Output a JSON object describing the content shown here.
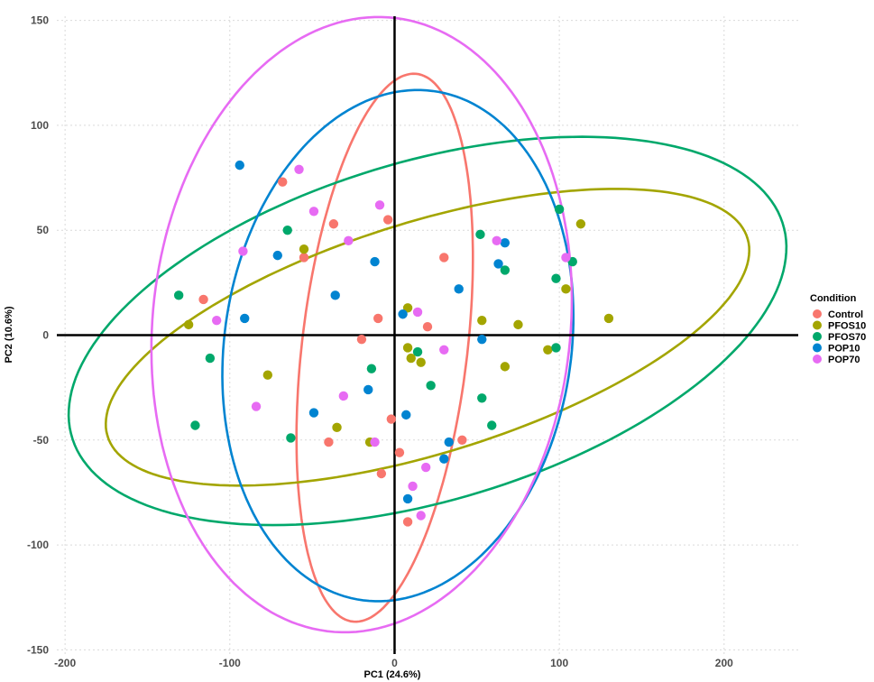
{
  "chart_data": {
    "type": "scatter",
    "xlabel": "PC1 (24.6%)",
    "ylabel": "PC2 (10.6%)",
    "xlim": [
      -205,
      245
    ],
    "ylim": [
      -152,
      152
    ],
    "x_ticks": [
      -200,
      -100,
      0,
      100,
      200
    ],
    "y_ticks": [
      -150,
      -100,
      -50,
      0,
      50,
      100,
      150
    ],
    "grid": true,
    "zero_lines": true,
    "legend_title": "Condition",
    "legend_position": "right",
    "series": [
      {
        "name": "Control",
        "color": "#F8766D",
        "points": [
          [
            -68,
            73
          ],
          [
            -37,
            53
          ],
          [
            -55,
            37
          ],
          [
            -116,
            17
          ],
          [
            -10,
            8
          ],
          [
            -20,
            -2
          ],
          [
            -4,
            55
          ],
          [
            30,
            37
          ],
          [
            20,
            4
          ],
          [
            -2,
            -40
          ],
          [
            -40,
            -51
          ],
          [
            3,
            -56
          ],
          [
            -8,
            -66
          ],
          [
            41,
            -50
          ],
          [
            8,
            -89
          ]
        ],
        "ellipse": {
          "cx": -6,
          "cy": -6,
          "rx": 132,
          "ry": 50,
          "angle_deg": 81
        }
      },
      {
        "name": "PFOS10",
        "color": "#A3A500",
        "points": [
          [
            -55,
            41
          ],
          [
            -125,
            5
          ],
          [
            8,
            13
          ],
          [
            8,
            -6
          ],
          [
            10,
            -11
          ],
          [
            -77,
            -19
          ],
          [
            -35,
            -44
          ],
          [
            -15,
            -51
          ],
          [
            16,
            -13
          ],
          [
            53,
            7
          ],
          [
            75,
            5
          ],
          [
            67,
            -15
          ],
          [
            93,
            -7
          ],
          [
            104,
            22
          ],
          [
            113,
            53
          ],
          [
            130,
            8
          ]
        ],
        "ellipse": {
          "cx": 20,
          "cy": -1,
          "rx": 200,
          "ry": 56,
          "angle_deg": 13
        }
      },
      {
        "name": "PFOS70",
        "color": "#00A86B",
        "points": [
          [
            -131,
            19
          ],
          [
            -65,
            50
          ],
          [
            -112,
            -11
          ],
          [
            -121,
            -43
          ],
          [
            -63,
            -49
          ],
          [
            -14,
            -16
          ],
          [
            14,
            -8
          ],
          [
            22,
            -24
          ],
          [
            52,
            48
          ],
          [
            67,
            31
          ],
          [
            53,
            -30
          ],
          [
            59,
            -43
          ],
          [
            98,
            27
          ],
          [
            100,
            60
          ],
          [
            98,
            -6
          ],
          [
            108,
            35
          ]
        ],
        "ellipse": {
          "cx": 20,
          "cy": 2,
          "rx": 222,
          "ry": 82,
          "angle_deg": 12
        }
      },
      {
        "name": "POP10",
        "color": "#0084D1",
        "points": [
          [
            -94,
            81
          ],
          [
            -71,
            38
          ],
          [
            -91,
            8
          ],
          [
            -36,
            19
          ],
          [
            -12,
            35
          ],
          [
            5,
            10
          ],
          [
            -16,
            -26
          ],
          [
            -49,
            -37
          ],
          [
            7,
            -38
          ],
          [
            8,
            -78
          ],
          [
            33,
            -51
          ],
          [
            30,
            -59
          ],
          [
            39,
            22
          ],
          [
            53,
            -2
          ],
          [
            63,
            34
          ],
          [
            67,
            44
          ]
        ],
        "ellipse": {
          "cx": 2,
          "cy": -5,
          "rx": 124,
          "ry": 104,
          "angle_deg": 70
        }
      },
      {
        "name": "POP70",
        "color": "#E76BF3",
        "points": [
          [
            -58,
            79
          ],
          [
            -49,
            59
          ],
          [
            -28,
            45
          ],
          [
            -9,
            62
          ],
          [
            -92,
            40
          ],
          [
            -108,
            7
          ],
          [
            -84,
            -34
          ],
          [
            -31,
            -29
          ],
          [
            -12,
            -51
          ],
          [
            14,
            11
          ],
          [
            30,
            -7
          ],
          [
            19,
            -63
          ],
          [
            11,
            -72
          ],
          [
            16,
            -86
          ],
          [
            62,
            45
          ],
          [
            104,
            37
          ]
        ],
        "ellipse": {
          "cx": -20,
          "cy": 5,
          "rx": 148,
          "ry": 126,
          "angle_deg": 75
        }
      }
    ]
  }
}
